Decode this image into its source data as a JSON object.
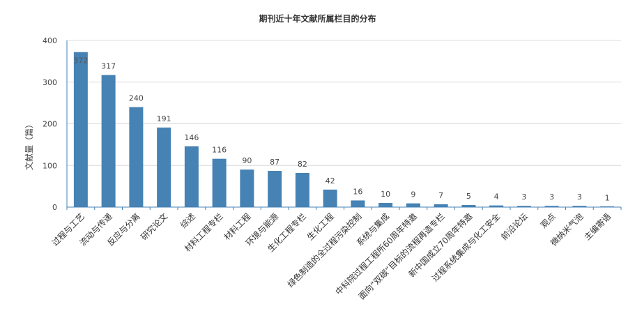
{
  "chart_data": {
    "type": "bar",
    "title": "期刊近十年文献所属栏目的分布",
    "xlabel": "",
    "ylabel": "文献量（篇）",
    "ylim": [
      0,
      400
    ],
    "yticks": [
      0,
      100,
      200,
      300,
      400
    ],
    "grid": true,
    "bar_color": "#4682b4",
    "categories": [
      "过程与工艺",
      "流动与传递",
      "反应与分离",
      "研究论文",
      "综述",
      "材料工程专栏",
      "材料工程",
      "环境与能源",
      "生化工程专栏",
      "生化工程",
      "绿色制造的全过程污染控制",
      "系统与集成",
      "中科院过程工程所60周年特邀",
      "面向“双碳”目标的流程再造专栏",
      "新中国成立70周年特邀",
      "过程系统集成与化工安全",
      "前沿论坛",
      "观点",
      "微纳米气泡",
      "主编寄语"
    ],
    "values": [
      372,
      317,
      240,
      191,
      146,
      116,
      90,
      87,
      82,
      42,
      16,
      10,
      9,
      7,
      5,
      4,
      3,
      3,
      3,
      1
    ]
  }
}
